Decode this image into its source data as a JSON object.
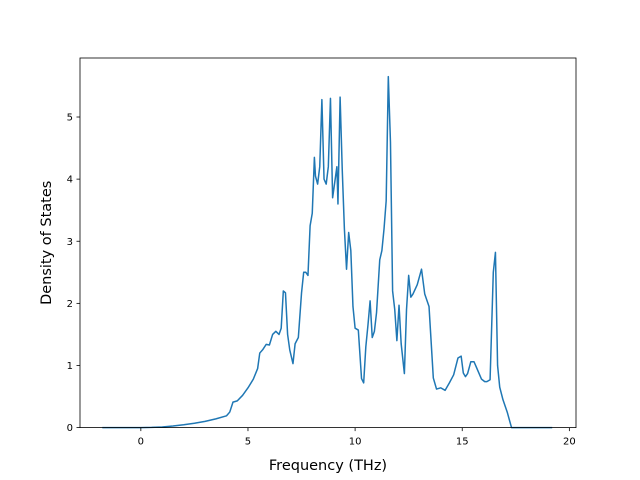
{
  "chart_data": {
    "type": "line",
    "title": "",
    "xlabel": "Frequency (THz)",
    "ylabel": "Density of States",
    "xlim": [
      -2.84,
      20.31
    ],
    "ylim": [
      0,
      5.95
    ],
    "xticks": [
      0,
      5,
      10,
      15,
      20
    ],
    "yticks": [
      0,
      1,
      2,
      3,
      4,
      5
    ],
    "grid": false,
    "legend": "none",
    "series_color": "#1f77b4",
    "series": [
      {
        "x": [
          -1.8,
          -1.0,
          0.0,
          0.5,
          1.0,
          1.5,
          2.0,
          2.5,
          3.0,
          3.5,
          4.0,
          4.15,
          4.3,
          4.5,
          4.75,
          5.0,
          5.25,
          5.45,
          5.55,
          5.7,
          5.85,
          6.0,
          6.15,
          6.3,
          6.45,
          6.55,
          6.65,
          6.75,
          6.85,
          6.95,
          7.1,
          7.2,
          7.35,
          7.5,
          7.6,
          7.7,
          7.8,
          7.9,
          8.0,
          8.1,
          8.15,
          8.25,
          8.35,
          8.45,
          8.55,
          8.65,
          8.75,
          8.85,
          8.95,
          9.05,
          9.15,
          9.2,
          9.3,
          9.4,
          9.5,
          9.6,
          9.7,
          9.8,
          9.9,
          10.0,
          10.15,
          10.3,
          10.4,
          10.5,
          10.6,
          10.7,
          10.8,
          10.9,
          11.0,
          11.15,
          11.25,
          11.35,
          11.45,
          11.55,
          11.65,
          11.75,
          11.85,
          11.95,
          12.05,
          12.15,
          12.3,
          12.4,
          12.5,
          12.6,
          12.7,
          12.9,
          13.1,
          13.25,
          13.45,
          13.65,
          13.8,
          14.0,
          14.2,
          14.4,
          14.6,
          14.8,
          14.95,
          15.05,
          15.15,
          15.25,
          15.4,
          15.55,
          15.65,
          15.75,
          15.9,
          16.05,
          16.15,
          16.3,
          16.45,
          16.55,
          16.65,
          16.75,
          16.9,
          17.1,
          17.3,
          17.45,
          17.6,
          18.0,
          18.5,
          19.2
        ],
        "y": [
          0.0,
          0.0,
          0.0,
          0.003,
          0.01,
          0.025,
          0.045,
          0.07,
          0.1,
          0.14,
          0.19,
          0.25,
          0.41,
          0.43,
          0.52,
          0.64,
          0.78,
          0.95,
          1.2,
          1.26,
          1.34,
          1.33,
          1.5,
          1.55,
          1.5,
          1.6,
          2.2,
          2.17,
          1.5,
          1.25,
          1.03,
          1.35,
          1.45,
          2.17,
          2.5,
          2.5,
          2.45,
          3.25,
          3.45,
          4.35,
          4.05,
          3.92,
          4.2,
          5.28,
          4.0,
          3.92,
          4.2,
          5.3,
          3.7,
          3.95,
          4.2,
          3.6,
          5.32,
          4.15,
          3.2,
          2.55,
          3.14,
          2.85,
          1.95,
          1.6,
          1.57,
          0.79,
          0.72,
          1.3,
          1.65,
          2.04,
          1.45,
          1.55,
          1.85,
          2.7,
          2.85,
          3.2,
          3.65,
          5.65,
          4.6,
          2.2,
          1.9,
          1.4,
          1.97,
          1.35,
          0.87,
          1.9,
          2.45,
          2.1,
          2.15,
          2.3,
          2.55,
          2.15,
          1.95,
          0.8,
          0.62,
          0.64,
          0.6,
          0.72,
          0.85,
          1.12,
          1.15,
          0.88,
          0.82,
          0.87,
          1.06,
          1.06,
          0.98,
          0.9,
          0.78,
          0.74,
          0.74,
          0.77,
          2.5,
          2.82,
          1.0,
          0.65,
          0.45,
          0.25,
          0.0,
          0.0,
          0.0,
          0.0,
          0.0,
          0.0
        ]
      }
    ]
  }
}
